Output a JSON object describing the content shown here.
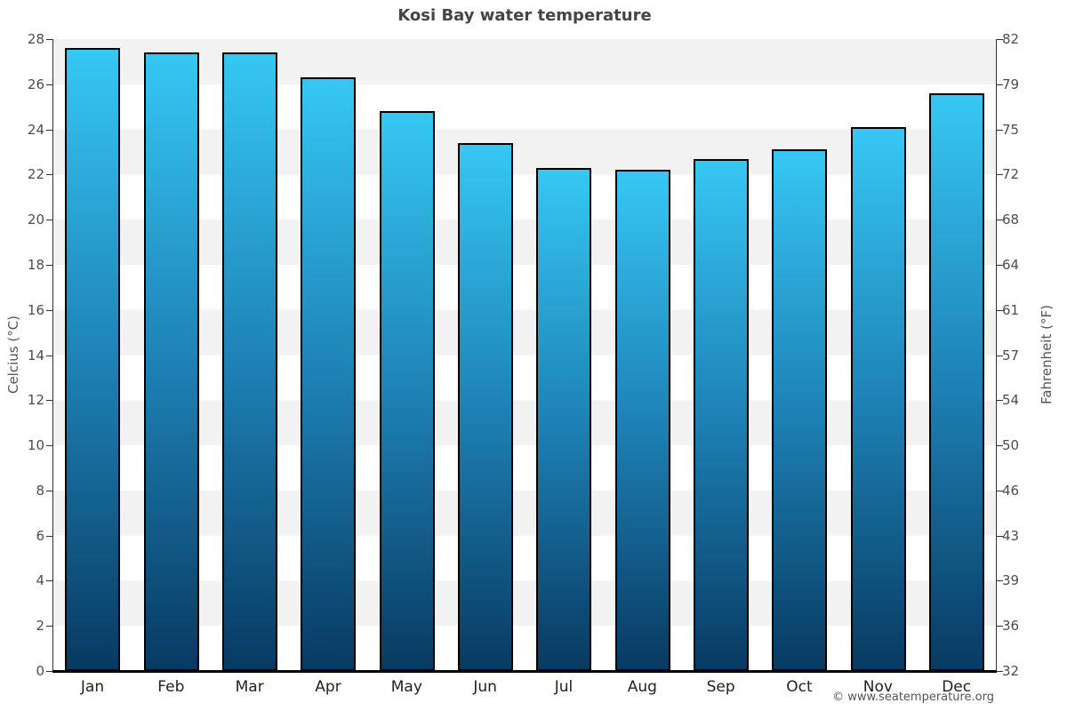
{
  "title": "Kosi Bay water temperature",
  "footer": "© www.seatemperature.org",
  "chart_data": {
    "type": "bar",
    "title": "Kosi Bay water temperature",
    "categories": [
      "Jan",
      "Feb",
      "Mar",
      "Apr",
      "May",
      "Jun",
      "Jul",
      "Aug",
      "Sep",
      "Oct",
      "Nov",
      "Dec"
    ],
    "values": [
      27.6,
      27.4,
      27.4,
      26.3,
      24.8,
      23.4,
      22.3,
      22.2,
      22.7,
      23.1,
      24.1,
      25.6
    ],
    "units": "°C",
    "xlabel": "",
    "ylabel_left": "Celcius (°C)",
    "ylabel_right": "Fahrenheit (°F)",
    "ylim_celsius": [
      0,
      28
    ],
    "ylim_fahrenheit": [
      32,
      82
    ],
    "yticks_celsius": [
      0,
      2,
      4,
      6,
      8,
      10,
      12,
      14,
      16,
      18,
      20,
      22,
      24,
      26,
      28
    ],
    "yticks_fahrenheit": [
      32,
      36,
      39,
      43,
      46,
      50,
      54,
      57,
      61,
      64,
      68,
      72,
      75,
      79,
      82
    ],
    "legend": "none",
    "grid": "alternating horizontal bands every 2°C",
    "colors": {
      "bar_gradient_top": "#36c7f3",
      "bar_gradient_mid": "#1e82b6",
      "bar_gradient_bottom": "#083a62",
      "bar_border": "#000000",
      "band_gray": "#f2f2f2",
      "band_white": "#ffffff",
      "axis_line": "#333333",
      "tick_label": "#4d4d4d",
      "title_color": "#454545",
      "footer_color": "#555555"
    }
  }
}
